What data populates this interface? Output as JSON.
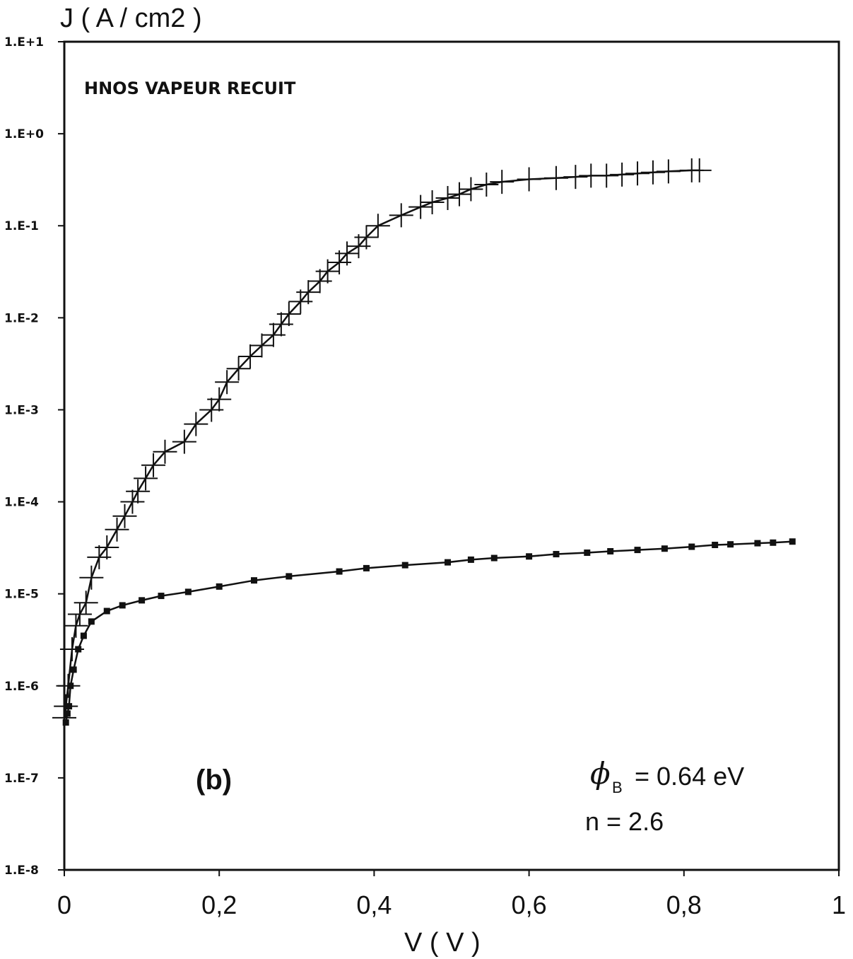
{
  "chart_data": {
    "type": "scatter",
    "y_scale": "log",
    "ylabel": "J ( A / cm2 )",
    "xlabel": "V ( V )",
    "xlim": [
      0,
      1
    ],
    "ylim": [
      1e-08,
      10
    ],
    "x_ticks": [
      "0",
      "0,2",
      "0,4",
      "0,6",
      "0,8",
      "1"
    ],
    "x_tick_values": [
      0,
      0.2,
      0.4,
      0.6,
      0.8,
      1
    ],
    "y_ticks": [
      "1.E-8",
      "1.E-7",
      "1.E-6",
      "1.E-5",
      "1.E-4",
      "1.E-3",
      "1.E-2",
      "1.E-1",
      "1.E+0",
      "1.E+1"
    ],
    "y_tick_values": [
      1e-08,
      1e-07,
      1e-06,
      1e-05,
      0.0001,
      0.001,
      0.01,
      0.1,
      1,
      10
    ],
    "grid": false,
    "annotations": {
      "sample": "HNOS VAPEUR RECUIT",
      "panel": "(b)",
      "phi_symbol": "ϕ",
      "phi_sub": "B",
      "phi_value": "= 0.64 eV",
      "ideality": "n = 2.6"
    },
    "series": [
      {
        "marker": "plus",
        "x": [
          0.0,
          0.002,
          0.005,
          0.01,
          0.015,
          0.02,
          0.028,
          0.035,
          0.045,
          0.055,
          0.068,
          0.078,
          0.088,
          0.095,
          0.105,
          0.115,
          0.13,
          0.155,
          0.17,
          0.19,
          0.2,
          0.21,
          0.225,
          0.24,
          0.255,
          0.27,
          0.28,
          0.29,
          0.305,
          0.315,
          0.33,
          0.34,
          0.355,
          0.365,
          0.38,
          0.39,
          0.405,
          0.435,
          0.46,
          0.475,
          0.495,
          0.51,
          0.525,
          0.545,
          0.565,
          0.6,
          0.635,
          0.66,
          0.68,
          0.7,
          0.72,
          0.74,
          0.76,
          0.78,
          0.81,
          0.82
        ],
        "y": [
          4.5e-07,
          6e-07,
          1e-06,
          2.5e-06,
          4.5e-06,
          6e-06,
          8e-06,
          1.5e-05,
          2.5e-05,
          3.2e-05,
          5e-05,
          7e-05,
          0.0001,
          0.00013,
          0.00018,
          0.00025,
          0.00035,
          0.00045,
          0.0007,
          0.001,
          0.0013,
          0.002,
          0.0028,
          0.0038,
          0.005,
          0.0065,
          0.0085,
          0.011,
          0.015,
          0.019,
          0.025,
          0.032,
          0.04,
          0.05,
          0.06,
          0.075,
          0.1,
          0.13,
          0.16,
          0.18,
          0.2,
          0.22,
          0.25,
          0.28,
          0.3,
          0.32,
          0.33,
          0.34,
          0.35,
          0.35,
          0.36,
          0.37,
          0.38,
          0.39,
          0.4,
          0.4
        ]
      },
      {
        "marker": "square",
        "x": [
          0.002,
          0.004,
          0.006,
          0.008,
          0.012,
          0.018,
          0.025,
          0.035,
          0.055,
          0.075,
          0.1,
          0.125,
          0.16,
          0.2,
          0.245,
          0.29,
          0.355,
          0.39,
          0.44,
          0.495,
          0.525,
          0.555,
          0.6,
          0.635,
          0.675,
          0.705,
          0.74,
          0.775,
          0.81,
          0.84,
          0.86,
          0.895,
          0.915,
          0.94
        ],
        "y": [
          4e-07,
          5e-07,
          6e-07,
          1e-06,
          1.5e-06,
          2.5e-06,
          3.5e-06,
          5e-06,
          6.5e-06,
          7.5e-06,
          8.5e-06,
          9.5e-06,
          1.05e-05,
          1.2e-05,
          1.4e-05,
          1.55e-05,
          1.75e-05,
          1.9e-05,
          2.05e-05,
          2.2e-05,
          2.35e-05,
          2.45e-05,
          2.55e-05,
          2.7e-05,
          2.8e-05,
          2.9e-05,
          3e-05,
          3.1e-05,
          3.25e-05,
          3.4e-05,
          3.45e-05,
          3.55e-05,
          3.6e-05,
          3.7e-05
        ]
      }
    ]
  }
}
